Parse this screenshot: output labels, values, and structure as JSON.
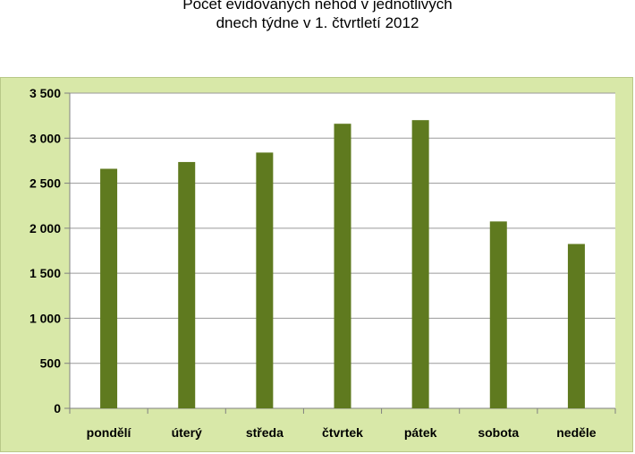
{
  "chart_data": {
    "type": "bar",
    "title_lines": [
      "Počet evidovaných nehod v jednotlivých",
      "dnech týdne v 1. čtvrtletí 2012"
    ],
    "categories": [
      "pondělí",
      "úterý",
      "středa",
      "čtvrtek",
      "pátek",
      "sobota",
      "neděle"
    ],
    "values": [
      2660,
      2735,
      2840,
      3160,
      3200,
      2075,
      1825
    ],
    "ylim": [
      0,
      3500
    ],
    "yticks": [
      0,
      500,
      1000,
      1500,
      2000,
      2500,
      3000,
      3500
    ],
    "ytick_labels": [
      "0",
      "500",
      "1 000",
      "1 500",
      "2 000",
      "2 500",
      "3 000",
      "3 500"
    ],
    "grid": true,
    "colors": {
      "bar": "#5f7a1f",
      "plot_background": "#ffffff",
      "chart_background": "#d8e8a8",
      "grid": "#9a9a9a"
    }
  }
}
